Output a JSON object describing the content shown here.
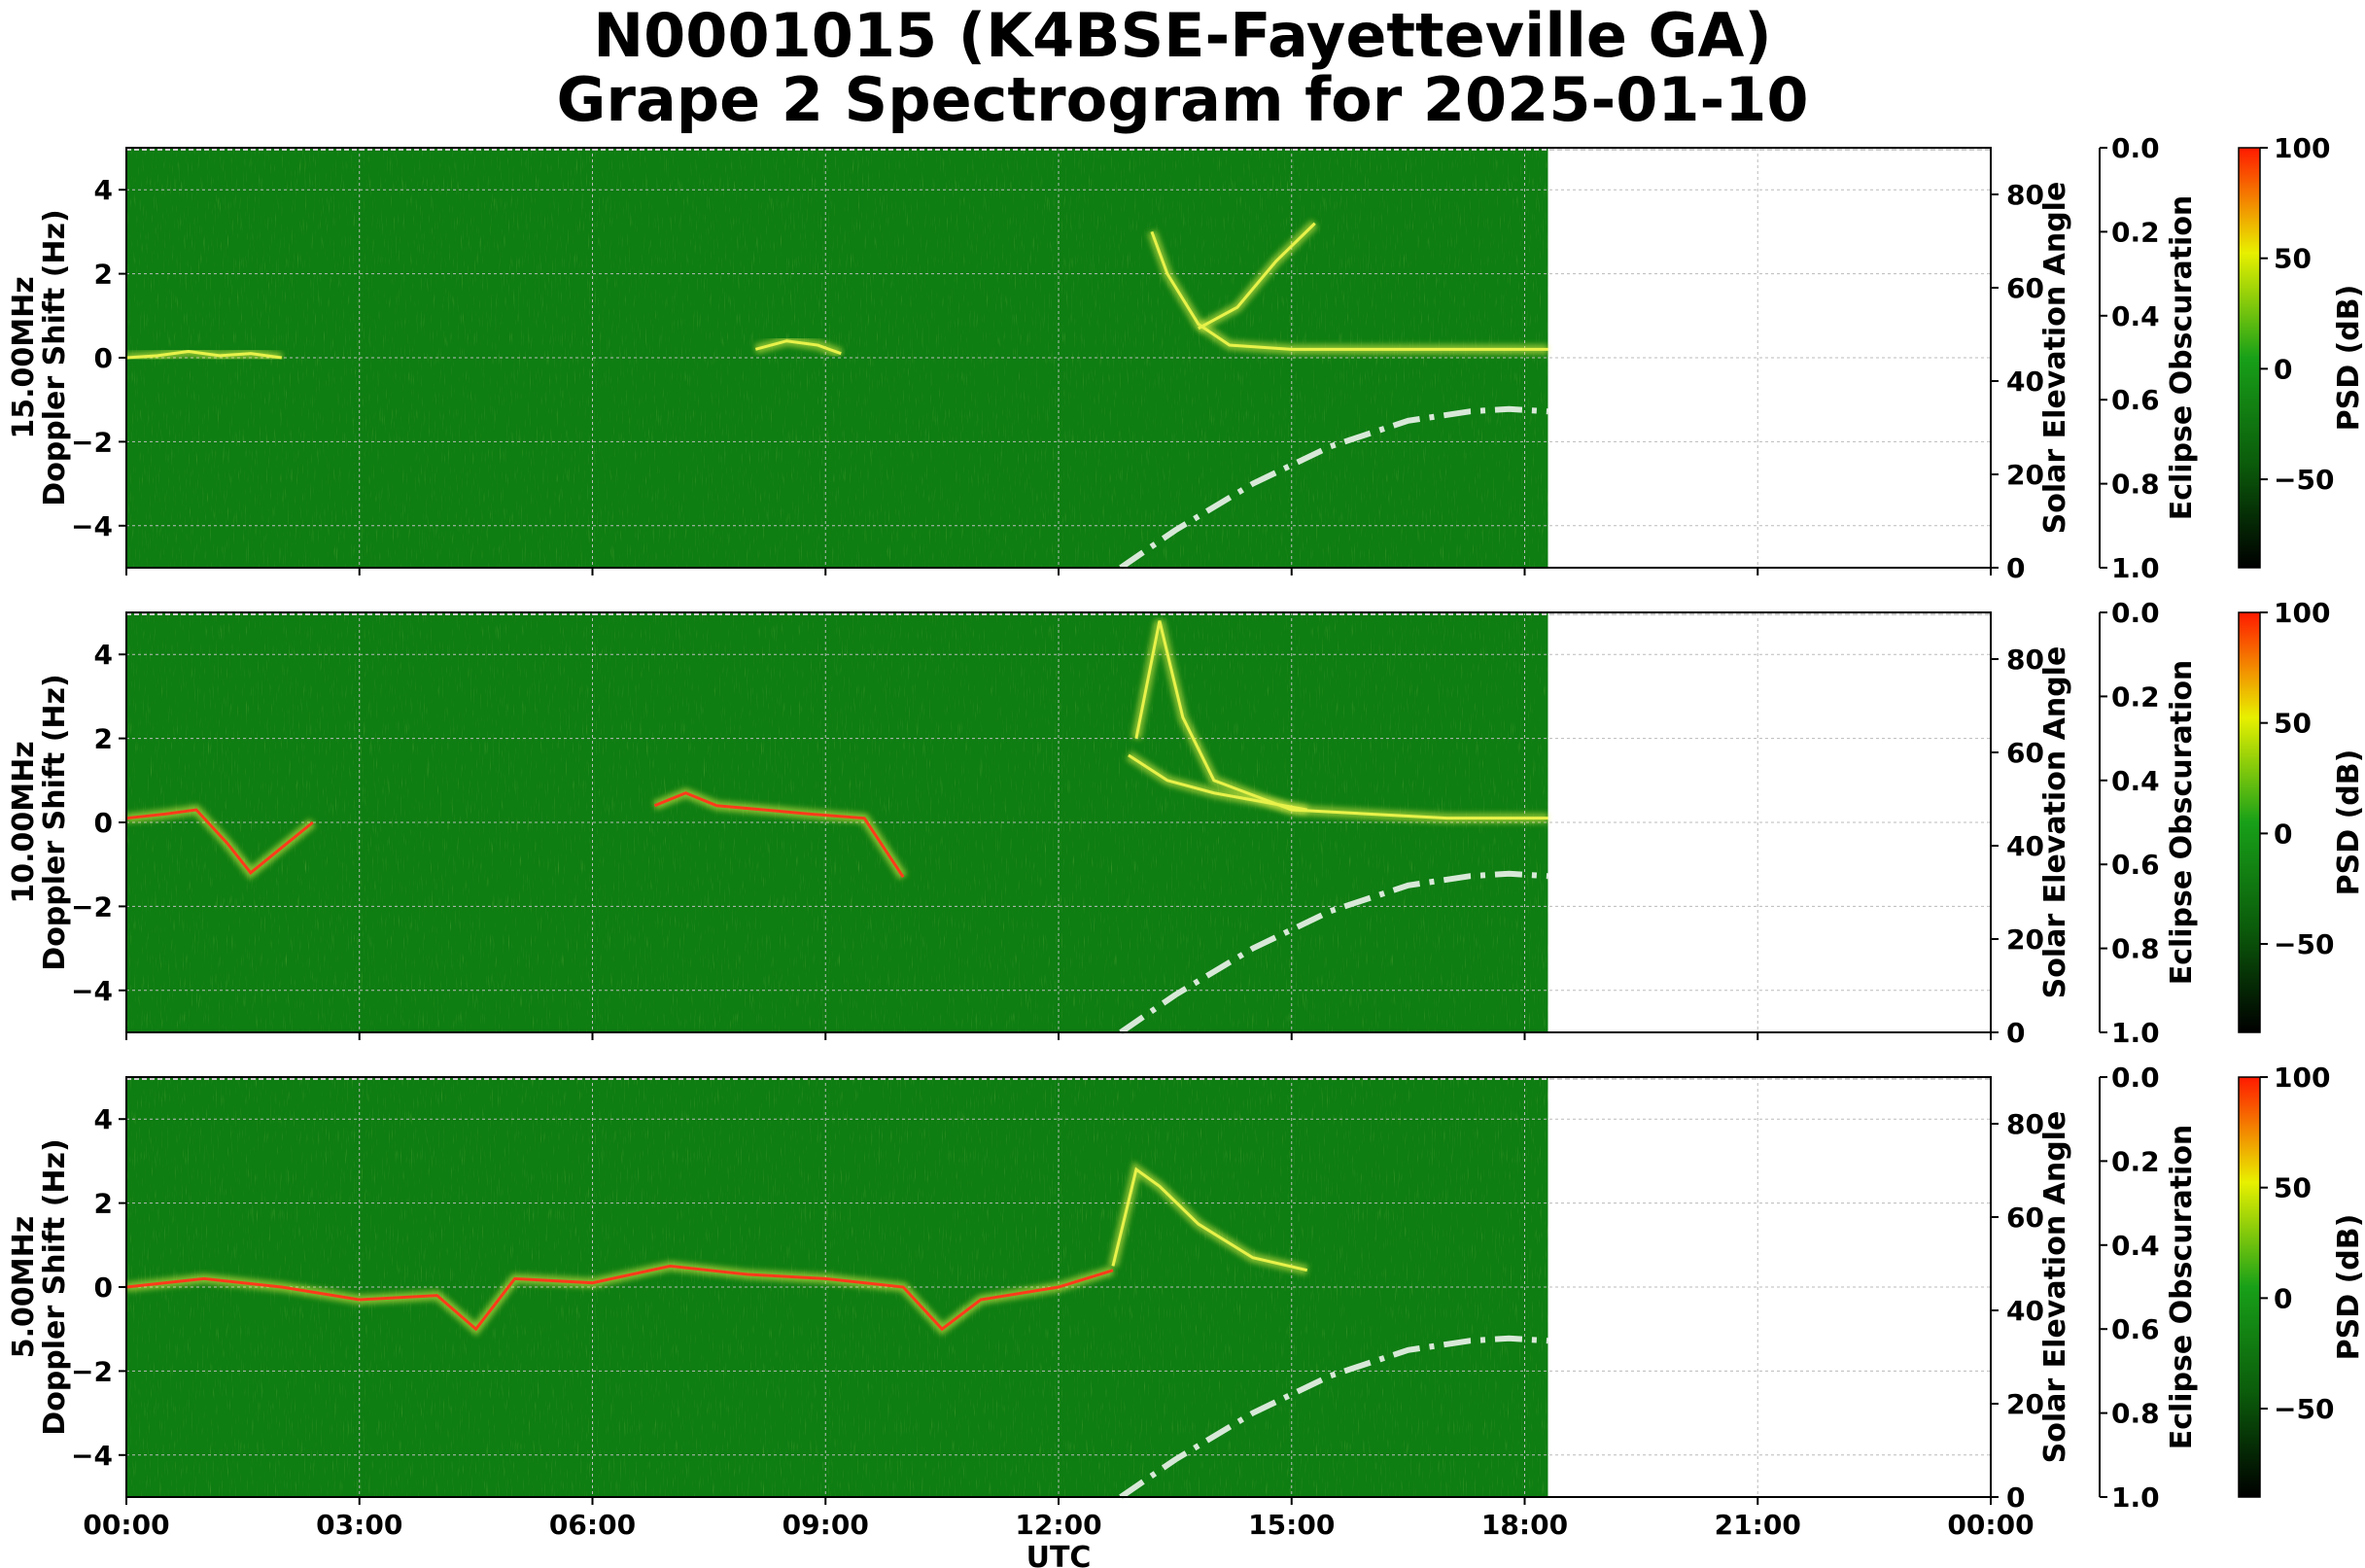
{
  "figure": {
    "title_line1": "N0001015 (K4BSE-Fayetteville GA)",
    "title_line2": "Grape 2 Spectrogram for 2025-01-10",
    "xlabel": "UTC",
    "x_ticks": [
      "00:00",
      "03:00",
      "06:00",
      "09:00",
      "12:00",
      "15:00",
      "18:00",
      "21:00",
      "00:00"
    ],
    "colors": {
      "background_green": "#0e7d12",
      "trace_yellow": "#e8f24a",
      "trace_red": "#ff3a1a",
      "solar_curve": "#d8e8d8",
      "grid": "#bbbbbb"
    }
  },
  "chart_data": [
    {
      "type": "heatmap",
      "panel": "15.00MHz",
      "ylabel_line1": "15.00MHz",
      "ylabel_line2": "Doppler Shift (Hz)",
      "ylim": [
        -5,
        5
      ],
      "y_ticks": [
        "4",
        "2",
        "0",
        "−2",
        "−4"
      ],
      "x_range_hours": [
        0,
        24
      ],
      "data_end_hour": 18.3,
      "right_axis": {
        "label": "Solar Elevation Angle",
        "ylim": [
          0,
          90
        ],
        "ticks": [
          "80",
          "60",
          "40",
          "20",
          "0"
        ]
      },
      "eclipse_axis": {
        "label": "Eclipse Obscuration",
        "ylim": [
          1.0,
          0.0
        ],
        "ticks": [
          "0.0",
          "0.2",
          "0.4",
          "0.6",
          "0.8",
          "1.0"
        ]
      },
      "colorbar": {
        "label": "PSD (dB)",
        "range": [
          -90,
          100
        ],
        "ticks": [
          "100",
          "50",
          "0",
          "−50"
        ]
      },
      "solar_elevation_curve": {
        "hours": [
          12.8,
          13.5,
          14.5,
          15.5,
          16.5,
          17.3,
          17.8,
          18.3
        ],
        "degrees": [
          0,
          8,
          18,
          26,
          31.5,
          33.5,
          34,
          33.5
        ]
      },
      "doppler_traces": [
        {
          "hours": [
            0,
            0.4,
            0.8,
            1.2,
            1.6,
            2.0
          ],
          "hz": [
            0,
            0.05,
            0.15,
            0.05,
            0.1,
            0.0
          ],
          "intensity": "yellow"
        },
        {
          "hours": [
            8.1,
            8.5,
            8.9,
            9.2
          ],
          "hz": [
            0.2,
            0.4,
            0.3,
            0.1
          ],
          "intensity": "yellow"
        },
        {
          "hours": [
            13.2,
            13.4,
            13.8,
            14.2,
            15,
            16,
            17,
            18.3
          ],
          "hz": [
            3.0,
            2.0,
            0.8,
            0.3,
            0.2,
            0.2,
            0.2,
            0.2
          ],
          "intensity": "yellow"
        },
        {
          "hours": [
            13.8,
            14.3,
            14.8,
            15.3
          ],
          "hz": [
            0.7,
            1.2,
            2.3,
            3.2
          ],
          "intensity": "yellow"
        }
      ]
    },
    {
      "type": "heatmap",
      "panel": "10.00MHz",
      "ylabel_line1": "10.00MHz",
      "ylabel_line2": "Doppler Shift (Hz)",
      "ylim": [
        -5,
        5
      ],
      "y_ticks": [
        "4",
        "2",
        "0",
        "−2",
        "−4"
      ],
      "x_range_hours": [
        0,
        24
      ],
      "data_end_hour": 18.3,
      "right_axis": {
        "label": "Solar Elevation Angle",
        "ylim": [
          0,
          90
        ],
        "ticks": [
          "80",
          "60",
          "40",
          "20",
          "0"
        ]
      },
      "eclipse_axis": {
        "label": "Eclipse Obscuration",
        "ylim": [
          1.0,
          0.0
        ],
        "ticks": [
          "0.0",
          "0.2",
          "0.4",
          "0.6",
          "0.8",
          "1.0"
        ]
      },
      "colorbar": {
        "label": "PSD (dB)",
        "range": [
          -90,
          100
        ],
        "ticks": [
          "100",
          "50",
          "0",
          "−50"
        ]
      },
      "solar_elevation_curve": {
        "hours": [
          12.8,
          13.5,
          14.5,
          15.5,
          16.5,
          17.3,
          17.8,
          18.3
        ],
        "degrees": [
          0,
          8,
          18,
          26,
          31.5,
          33.5,
          34,
          33.5
        ]
      },
      "doppler_traces": [
        {
          "hours": [
            0,
            0.5,
            0.9,
            1.3,
            1.6,
            2.0,
            2.4
          ],
          "hz": [
            0.1,
            0.2,
            0.3,
            -0.5,
            -1.2,
            -0.6,
            0.0
          ],
          "intensity": "red"
        },
        {
          "hours": [
            6.8,
            7.2,
            7.6,
            8.2,
            8.8,
            9.5,
            10.0
          ],
          "hz": [
            0.4,
            0.7,
            0.4,
            0.3,
            0.2,
            0.1,
            -1.3
          ],
          "intensity": "red"
        },
        {
          "hours": [
            13.0,
            13.3,
            13.6,
            14.0,
            15,
            16,
            17,
            18.3
          ],
          "hz": [
            2.0,
            4.8,
            2.5,
            1.0,
            0.3,
            0.2,
            0.1,
            0.1
          ],
          "intensity": "yellow"
        },
        {
          "hours": [
            12.9,
            13.4,
            14.0,
            14.6,
            15.2
          ],
          "hz": [
            1.6,
            1.0,
            0.7,
            0.5,
            0.3
          ],
          "intensity": "yellow"
        }
      ]
    },
    {
      "type": "heatmap",
      "panel": "5.00MHz",
      "ylabel_line1": "5.00MHz",
      "ylabel_line2": "Doppler Shift (Hz)",
      "ylim": [
        -5,
        5
      ],
      "y_ticks": [
        "4",
        "2",
        "0",
        "−2",
        "−4"
      ],
      "x_range_hours": [
        0,
        24
      ],
      "data_end_hour": 18.3,
      "right_axis": {
        "label": "Solar Elevation Angle",
        "ylim": [
          0,
          90
        ],
        "ticks": [
          "80",
          "60",
          "40",
          "20",
          "0"
        ]
      },
      "eclipse_axis": {
        "label": "Eclipse Obscuration",
        "ylim": [
          1.0,
          0.0
        ],
        "ticks": [
          "0.0",
          "0.2",
          "0.4",
          "0.6",
          "0.8",
          "1.0"
        ]
      },
      "colorbar": {
        "label": "PSD (dB)",
        "range": [
          -90,
          100
        ],
        "ticks": [
          "100",
          "50",
          "0",
          "−50"
        ]
      },
      "solar_elevation_curve": {
        "hours": [
          12.8,
          13.5,
          14.5,
          15.5,
          16.5,
          17.3,
          17.8,
          18.3
        ],
        "degrees": [
          0,
          8,
          18,
          26,
          31.5,
          33.5,
          34,
          33.5
        ]
      },
      "doppler_traces": [
        {
          "hours": [
            0,
            1,
            2,
            3,
            4,
            4.5,
            5,
            6,
            7,
            8,
            9,
            10,
            10.5,
            11,
            12,
            12.7
          ],
          "hz": [
            0,
            0.2,
            0,
            -0.3,
            -0.2,
            -1.0,
            0.2,
            0.1,
            0.5,
            0.3,
            0.2,
            0.0,
            -1.0,
            -0.3,
            0.0,
            0.4
          ],
          "intensity": "red"
        },
        {
          "hours": [
            12.7,
            13.0,
            13.3,
            13.8,
            14.5,
            15.2
          ],
          "hz": [
            0.5,
            2.8,
            2.4,
            1.5,
            0.7,
            0.4
          ],
          "intensity": "yellow"
        }
      ]
    }
  ]
}
